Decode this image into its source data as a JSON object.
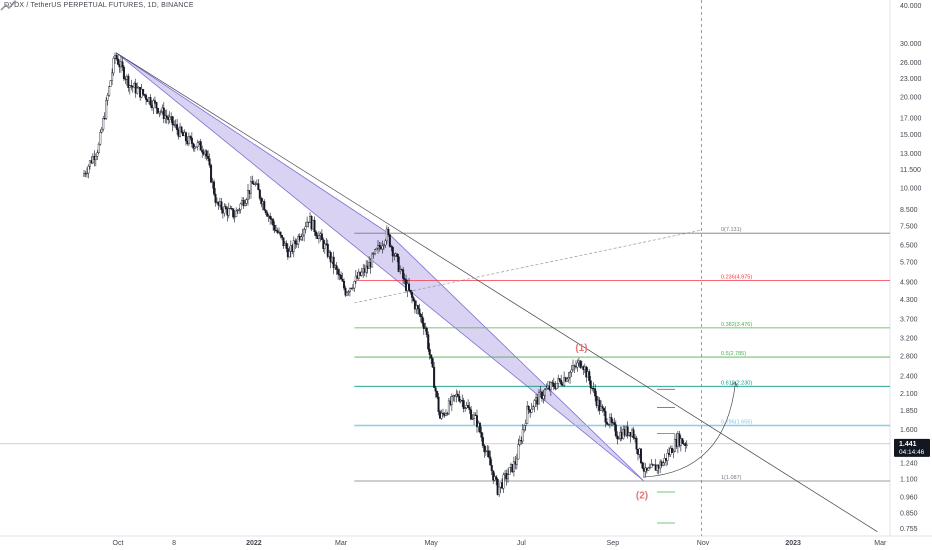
{
  "header": {
    "title": "DYDX / TetherUS PERPETUAL FUTURES, 1D, BINANCE"
  },
  "price_scale": {
    "labels": [
      "40.000",
      "30.000",
      "26.000",
      "23.000",
      "20.000",
      "17.000",
      "15.000",
      "13.000",
      "11.500",
      "10.000",
      "8.500",
      "7.500",
      "6.500",
      "5.700",
      "4.900",
      "4.300",
      "3.700",
      "3.200",
      "2.800",
      "2.400",
      "2.100",
      "1.850",
      "1.600",
      "1.240",
      "1.100",
      "0.960",
      "0.850",
      "0.755"
    ],
    "current_price": "1.441",
    "countdown": "04:14:46"
  },
  "time_scale": {
    "labels": [
      "Oct",
      "8",
      "2022",
      "Mar",
      "May",
      "Jul",
      "Sep",
      "Nov",
      "2023",
      "Mar"
    ]
  },
  "fibonacci": [
    {
      "text": "0(7.131)",
      "color": "#787b86"
    },
    {
      "text": "0.236(4.975)",
      "color": "#f23645"
    },
    {
      "text": "0.382(3.476)",
      "color": "#4caf50"
    },
    {
      "text": "0.5(2.785)",
      "color": "#4caf50"
    },
    {
      "text": "0.618(2.230)",
      "color": "#089981"
    },
    {
      "text": "0.786(1.656)",
      "color": "#81c6e6"
    },
    {
      "text": "1(1.087)",
      "color": "#787b86"
    }
  ],
  "annotations": {
    "wave_1": "(1)",
    "wave_2": "(2)"
  },
  "colors": {
    "triangle_fill": "#b3a6e6",
    "triangle_stroke": "#7e6fd1",
    "wave_label": "#e57373",
    "candle": "#131722",
    "vertical_line": "#4caf50"
  },
  "chart_data": {
    "type": "candlestick",
    "title": "DYDX / TetherUS PERPETUAL FUTURES, 1D, BINANCE",
    "y_scale": "log",
    "ylim": [
      0.73,
      44
    ],
    "x_ticks": [
      "Oct",
      "8",
      "2022",
      "Mar",
      "May",
      "Jul",
      "Sep",
      "Nov",
      "2023",
      "Mar"
    ],
    "y_ticks": [
      40,
      30,
      26,
      23,
      20,
      17,
      15,
      13,
      11.5,
      10,
      8.5,
      7.5,
      6.5,
      5.7,
      4.9,
      4.3,
      3.7,
      3.2,
      2.8,
      2.4,
      2.1,
      1.85,
      1.6,
      1.24,
      1.1,
      0.96,
      0.85,
      0.755
    ],
    "current_price": 1.441,
    "price_path": [
      {
        "date": "2021-09-08",
        "close": 11.0
      },
      {
        "date": "2021-09-19",
        "close": 13.8
      },
      {
        "date": "2021-09-30",
        "close": 27.5
      },
      {
        "date": "2021-10-10",
        "close": 22.0
      },
      {
        "date": "2021-10-22",
        "close": 20.0
      },
      {
        "date": "2021-11-05",
        "close": 17.0
      },
      {
        "date": "2021-11-17",
        "close": 14.5
      },
      {
        "date": "2021-11-30",
        "close": 13.5
      },
      {
        "date": "2021-12-08",
        "close": 8.8
      },
      {
        "date": "2021-12-20",
        "close": 8.2
      },
      {
        "date": "2022-01-02",
        "close": 10.5
      },
      {
        "date": "2022-01-15",
        "close": 7.6
      },
      {
        "date": "2022-01-26",
        "close": 6.1
      },
      {
        "date": "2022-02-08",
        "close": 8.0
      },
      {
        "date": "2022-02-20",
        "close": 6.3
      },
      {
        "date": "2022-03-05",
        "close": 4.6
      },
      {
        "date": "2022-03-20",
        "close": 5.5
      },
      {
        "date": "2022-04-02",
        "close": 7.1
      },
      {
        "date": "2022-04-14",
        "close": 4.9
      },
      {
        "date": "2022-04-28",
        "close": 3.5
      },
      {
        "date": "2022-05-08",
        "close": 1.75
      },
      {
        "date": "2022-05-20",
        "close": 2.1
      },
      {
        "date": "2022-06-02",
        "close": 1.7
      },
      {
        "date": "2022-06-16",
        "close": 1.02
      },
      {
        "date": "2022-06-28",
        "close": 1.25
      },
      {
        "date": "2022-07-06",
        "close": 1.85
      },
      {
        "date": "2022-07-18",
        "close": 2.15
      },
      {
        "date": "2022-07-30",
        "close": 2.35
      },
      {
        "date": "2022-08-12",
        "close": 2.7
      },
      {
        "date": "2022-08-24",
        "close": 1.9
      },
      {
        "date": "2022-09-05",
        "close": 1.55
      },
      {
        "date": "2022-09-15",
        "close": 1.6
      },
      {
        "date": "2022-09-24",
        "close": 1.15
      },
      {
        "date": "2022-10-06",
        "close": 1.25
      },
      {
        "date": "2022-10-16",
        "close": 1.5
      },
      {
        "date": "2022-10-22",
        "close": 1.44
      }
    ],
    "fib_levels": [
      {
        "level": 0,
        "price": 7.131
      },
      {
        "level": 0.236,
        "price": 4.975
      },
      {
        "level": 0.382,
        "price": 3.476
      },
      {
        "level": 0.5,
        "price": 2.785
      },
      {
        "level": 0.618,
        "price": 2.23
      },
      {
        "level": 0.786,
        "price": 1.656
      },
      {
        "level": 1,
        "price": 1.087
      }
    ],
    "triangle": [
      {
        "date": "2021-09-30",
        "price": 28.0
      },
      {
        "date": "2022-04-02",
        "price": 7.131
      },
      {
        "date": "2022-09-22",
        "price": 1.087
      }
    ],
    "trendlines": [
      {
        "from": {
          "date": "2021-09-30",
          "price": 28.0
        },
        "to": {
          "date": "2023-02-27",
          "price": 0.74
        },
        "style": "solid"
      },
      {
        "from": {
          "date": "2022-03-10",
          "price": 4.2
        },
        "to": {
          "date": "2022-10-31",
          "price": 7.3
        },
        "style": "dashed"
      }
    ],
    "projection_arrow": {
      "from": {
        "date": "2022-09-22",
        "price": 1.12
      },
      "to": {
        "date": "2022-11-23",
        "price": 2.3
      }
    },
    "vertical_marker_date": "2022-10-31",
    "wave_labels": [
      {
        "text": "(1)",
        "date": "2022-08-12",
        "price": 3.0
      },
      {
        "text": "(2)",
        "date": "2022-09-22",
        "price": 0.98
      }
    ]
  }
}
